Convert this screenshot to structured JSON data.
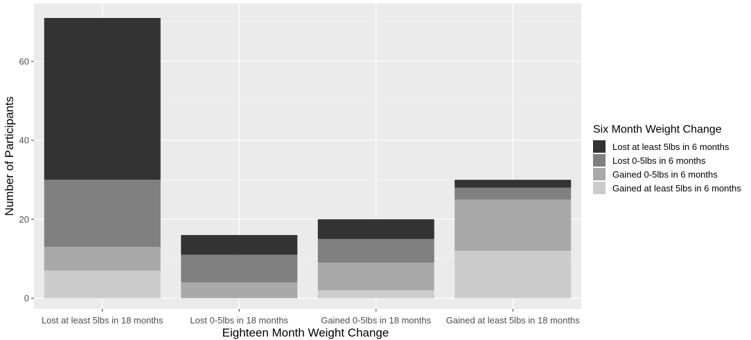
{
  "chart_data": {
    "type": "bar",
    "stacked": true,
    "xlabel": "Eighteen Month Weight Change",
    "ylabel": "Number of Participants",
    "ylim": [
      0,
      72
    ],
    "yticks": [
      0,
      20,
      40,
      60
    ],
    "grid": true,
    "legend_position": "right",
    "legend_title": "Six Month Weight Change",
    "categories": [
      "Lost at least 5lbs in 18 months",
      "Lost 0-5lbs in 18 months",
      "Gained 0-5lbs in 18 months",
      "Gained at least 5lbs in 18 months"
    ],
    "series": [
      {
        "name": "Gained at least 5lbs in 6 months",
        "color": "#cccccc",
        "values": [
          7,
          0,
          2,
          12
        ]
      },
      {
        "name": "Gained 0-5lbs in 6 months",
        "color": "#a9a9a9",
        "values": [
          6,
          4,
          7,
          13
        ]
      },
      {
        "name": "Lost 0-5lbs in 6 months",
        "color": "#808080",
        "values": [
          17,
          7,
          6,
          3
        ]
      },
      {
        "name": "Lost at least 5lbs in 6 months",
        "color": "#333333",
        "values": [
          41,
          5,
          5,
          2
        ]
      }
    ],
    "legend_order": [
      "Lost at least 5lbs in 6 months",
      "Lost 0-5lbs in 6 months",
      "Gained 0-5lbs in 6 months",
      "Gained at least 5lbs in 6 months"
    ]
  },
  "colors": {
    "panel_background": "#ebebeb",
    "grid_major": "#ffffff"
  }
}
